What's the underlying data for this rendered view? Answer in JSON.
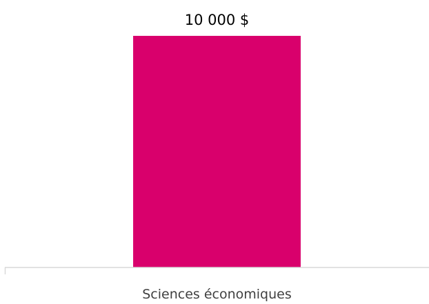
{
  "chart_data": {
    "type": "bar",
    "categories": [
      "Sciences économiques"
    ],
    "values": [
      10000
    ],
    "data_labels": [
      "10 000 $"
    ],
    "title": "",
    "xlabel": "",
    "ylabel": "",
    "ylim": [
      0,
      10000
    ],
    "grid": false,
    "legend": "none",
    "bar_color": "#d9006c",
    "axis_color": "#d9d9d9"
  }
}
